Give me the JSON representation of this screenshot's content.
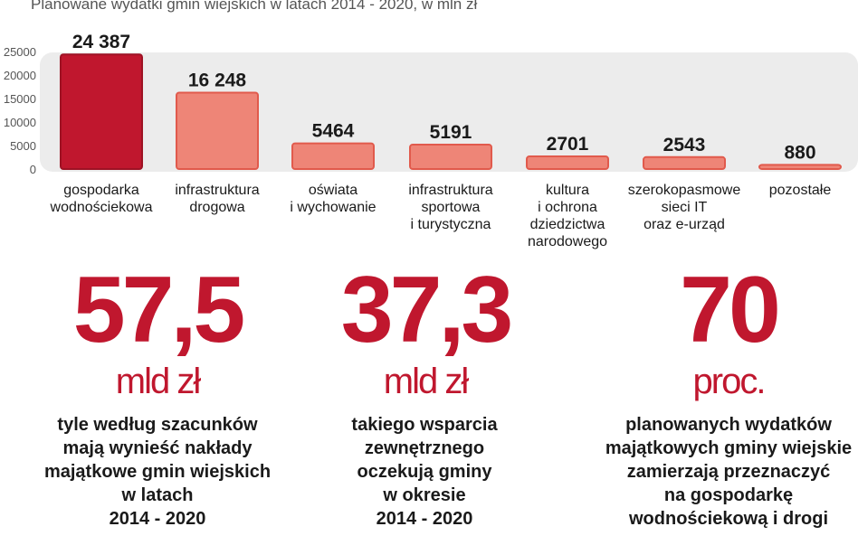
{
  "colors": {
    "highlight": "#c0172e",
    "bar": "#ee8577",
    "bar_stroke": "#e15a4c",
    "band": "#ececec",
    "axis_text": "#555555",
    "value_text": "#1a1a1a",
    "stat_red": "#c0172e"
  },
  "chart_data": {
    "type": "bar",
    "title": "Planowane wydatki gmin wiejskich w latach 2014 - 2020, w mln zł",
    "xlabel": "",
    "ylabel": "",
    "ylim": [
      0,
      25000
    ],
    "yticks": [
      "0",
      "5000",
      "10000",
      "15000",
      "20000",
      "25000"
    ],
    "grid": false,
    "highlight_index": 0,
    "categories": [
      [
        "gospodarka",
        "wodnościekowa"
      ],
      [
        "infrastruktura",
        "drogowa"
      ],
      [
        "oświata",
        "i wychowanie"
      ],
      [
        "infrastruktura",
        "sportowa",
        "i turystyczna"
      ],
      [
        "kultura",
        "i ochrona",
        "dziedzictwa",
        "narodowego"
      ],
      [
        "szerokopasmowe",
        "sieci IT",
        "oraz e-urząd"
      ],
      [
        "pozostałe"
      ]
    ],
    "values": [
      24387,
      16248,
      5464,
      5191,
      2701,
      2543,
      880
    ],
    "value_labels": [
      "24 387",
      "16 248",
      "5464",
      "5191",
      "2701",
      "2543",
      "880"
    ]
  },
  "stats": [
    {
      "value": "57,5",
      "unit": "mld zł",
      "lines": [
        "tyle według szacunków",
        "mają wynieść nakłady",
        "majątkowe gmin wiejskich",
        "w latach",
        "2014 - 2020"
      ]
    },
    {
      "value": "37,3",
      "unit": "mld zł",
      "lines": [
        "takiego wsparcia",
        "zewnętrznego",
        "oczekują gminy",
        "w okresie",
        "2014 - 2020"
      ]
    },
    {
      "value": "70",
      "unit": "proc.",
      "lines": [
        "planowanych wydatków",
        "majątkowych gminy wiejskie",
        "zamierzają przeznaczyć",
        "na gospodarkę",
        "wodnościekową i drogi"
      ]
    }
  ]
}
